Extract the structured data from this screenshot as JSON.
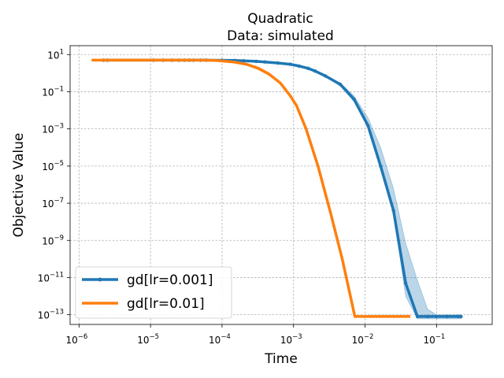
{
  "chart_data": {
    "type": "line",
    "title": "Quadratic",
    "subtitle": "Data: simulated",
    "xlabel": "Time",
    "ylabel": "Objective Value",
    "xscale": "log",
    "yscale": "log",
    "xlim": [
      7.5e-07,
      0.6
    ],
    "ylim": [
      3e-14,
      30
    ],
    "grid": true,
    "legend_loc": "lower-left",
    "x_ticks": [
      {
        "base": "10",
        "exp": "−6",
        "value": 1e-06
      },
      {
        "base": "10",
        "exp": "−5",
        "value": 1e-05
      },
      {
        "base": "10",
        "exp": "−4",
        "value": 0.0001
      },
      {
        "base": "10",
        "exp": "−3",
        "value": 0.001
      },
      {
        "base": "10",
        "exp": "−2",
        "value": 0.01
      },
      {
        "base": "10",
        "exp": "−1",
        "value": 0.1
      }
    ],
    "y_ticks": [
      {
        "base": "10",
        "exp": "1",
        "value": 10
      },
      {
        "base": "10",
        "exp": "−1",
        "value": 0.1
      },
      {
        "base": "10",
        "exp": "−3",
        "value": 0.001
      },
      {
        "base": "10",
        "exp": "−5",
        "value": 1e-05
      },
      {
        "base": "10",
        "exp": "−7",
        "value": 1e-07
      },
      {
        "base": "10",
        "exp": "−9",
        "value": 1e-09
      },
      {
        "base": "10",
        "exp": "−11",
        "value": 1e-11
      },
      {
        "base": "10",
        "exp": "−13",
        "value": 1e-13
      }
    ],
    "series": [
      {
        "name": "gd[lr=0.001]",
        "color": "#1f77b4",
        "markers": true,
        "x": [
          2.2e-06,
          2.5e-06,
          1.1e-05,
          1.5e-05,
          2e-05,
          2.5e-05,
          3e-05,
          3.5e-05,
          4e-05,
          5e-05,
          6e-05,
          0.0001,
          0.00015,
          0.0002,
          0.0003,
          0.0004,
          0.0006,
          0.0009,
          0.0012,
          0.0016,
          0.002,
          0.0028,
          0.0045,
          0.007,
          0.011,
          0.0165,
          0.025,
          0.037,
          0.054,
          0.075,
          0.1,
          0.14,
          0.2,
          0.22
        ],
        "y": [
          5,
          5,
          5,
          5,
          5,
          5,
          5,
          5,
          5,
          5,
          5,
          4.9,
          4.8,
          4.6,
          4.3,
          4.0,
          3.5,
          3.0,
          2.4,
          1.8,
          1.3,
          0.7,
          0.25,
          0.04,
          0.0015,
          1e-05,
          4e-08,
          5e-12,
          8e-14,
          8e-14,
          8e-14,
          8e-14,
          8e-14,
          8e-14
        ],
        "band_upper": [
          5,
          5,
          5,
          5,
          5,
          5,
          5,
          5,
          5,
          5,
          5,
          4.9,
          4.8,
          4.6,
          4.3,
          4.0,
          3.5,
          3.0,
          2.4,
          1.8,
          1.3,
          0.7,
          0.3,
          0.06,
          0.004,
          0.0001,
          6e-07,
          7e-10,
          7e-12,
          2e-13,
          1e-13,
          1e-13,
          1e-13,
          1e-13
        ],
        "band_lower": [
          5,
          5,
          5,
          5,
          5,
          5,
          5,
          5,
          5,
          5,
          5,
          4.9,
          4.8,
          4.6,
          4.3,
          4.0,
          3.5,
          3.0,
          2.4,
          1.8,
          1.3,
          0.65,
          0.2,
          0.03,
          0.0012,
          8e-06,
          3e-08,
          1e-12,
          6e-14,
          6e-14,
          6e-14,
          6e-14,
          6e-14,
          6e-14
        ]
      },
      {
        "name": "gd[lr=0.01]",
        "color": "#ff7f0e",
        "markers": false,
        "x": [
          1.5e-06,
          2e-06,
          3e-06,
          5e-06,
          1e-05,
          2e-05,
          3e-05,
          5e-05,
          8e-05,
          0.0001,
          0.00015,
          0.00022,
          0.00032,
          0.00045,
          0.00065,
          0.0009,
          0.0011,
          0.0015,
          0.0022,
          0.0033,
          0.0048,
          0.0072,
          0.01,
          0.015,
          0.025,
          0.035,
          0.043
        ],
        "y": [
          5,
          5,
          5,
          5,
          5,
          5,
          5,
          5,
          4.8,
          4.5,
          3.9,
          3.0,
          1.8,
          0.9,
          0.3,
          0.06,
          0.018,
          0.001,
          1e-05,
          3e-08,
          1e-10,
          8e-14,
          8e-14,
          8e-14,
          8e-14,
          8e-14,
          8e-14
        ],
        "band_upper": [
          5,
          5,
          5,
          5,
          5,
          5,
          5,
          5,
          5,
          4.8,
          4.3,
          3.4,
          2.2,
          1.1,
          0.35,
          0.07,
          0.02,
          0.0012,
          1.2e-05,
          3.5e-08,
          1.2e-10,
          8e-14,
          8e-14,
          8e-14,
          8e-14,
          8e-14,
          8e-14
        ],
        "band_lower": [
          5,
          5,
          5,
          5,
          5,
          5,
          5,
          5,
          4.6,
          4.2,
          3.6,
          2.7,
          1.6,
          0.8,
          0.26,
          0.05,
          0.016,
          0.0009,
          9e-06,
          2.5e-08,
          9e-11,
          8e-14,
          8e-14,
          8e-14,
          8e-14,
          8e-14,
          8e-14
        ]
      }
    ]
  }
}
